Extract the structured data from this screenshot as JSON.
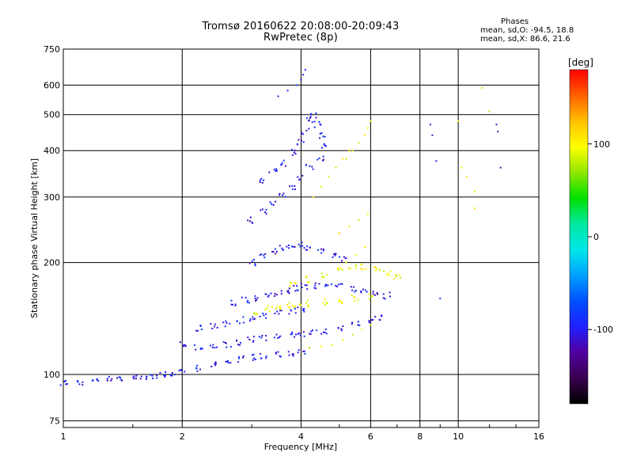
{
  "chart_data": {
    "type": "scatter",
    "title": "Tromsø 20160622 20:08:00-20:09:43",
    "subtitle": "RwPretec (8p)",
    "xlabel": "Frequency [MHz]",
    "ylabel": "Stationary phase Virtual Height [km]",
    "xscale": "log2",
    "yscale": "log",
    "xlim": [
      1,
      16
    ],
    "ylim": [
      72,
      750
    ],
    "xticks": [
      1,
      2,
      4,
      6,
      8,
      10,
      16
    ],
    "xtick_labels": [
      "1",
      "2",
      "4",
      "6",
      "8",
      "10",
      "16"
    ],
    "yticks": [
      75,
      100,
      200,
      300,
      400,
      500,
      600,
      750
    ],
    "ytick_labels": [
      "75",
      "100",
      "200",
      "300",
      "400",
      "500",
      "600",
      "750"
    ],
    "grid": true,
    "phase_stats": {
      "heading": "Phases",
      "line_o": "mean, sd,O: -94.5, 18.8",
      "line_x": "mean, sd,X:  86.6, 21.6"
    },
    "colorbar": {
      "label": "[deg]",
      "range": [
        -180,
        180
      ],
      "ticks": [
        100,
        0,
        -100
      ],
      "tick_labels": [
        "100",
        "0",
        "-100"
      ],
      "colormap": [
        "#000000",
        "#3a0050",
        "#5000a0",
        "#2020ff",
        "#0050ff",
        "#00a0ff",
        "#00e8e8",
        "#00e8a0",
        "#00e000",
        "#90e800",
        "#ffff00",
        "#ffc000",
        "#ff6000",
        "#ff0000"
      ]
    },
    "colors": {
      "o_mode": "#1a36ff",
      "x_mode": "#d8ea10",
      "grid": "#000000"
    },
    "phase_mean_o": -94.5,
    "phase_sd_o": 18.8,
    "phase_mean_x": 86.6,
    "phase_sd_x": 21.6,
    "series": [
      {
        "mode": "O",
        "phase": -100,
        "x": [
          1.0,
          1.1,
          1.2,
          1.3,
          1.4,
          1.5,
          1.6,
          1.7,
          1.8,
          1.9,
          2.0,
          2.2,
          2.4,
          2.6,
          2.8,
          3.0,
          3.2,
          3.5,
          3.8,
          4.0
        ],
        "y": [
          95,
          95,
          96,
          97,
          97,
          98,
          99,
          99,
          100,
          100,
          101,
          104,
          106,
          108,
          110,
          111,
          112,
          113,
          114,
          115
        ]
      },
      {
        "mode": "O",
        "phase": -100,
        "x": [
          2.0,
          2.2,
          2.4,
          2.6,
          2.8,
          3.0,
          3.2,
          3.5,
          3.8,
          4.0,
          4.3,
          4.6,
          5.0,
          5.5,
          6.0,
          6.3
        ],
        "y": [
          120,
          118,
          118,
          120,
          122,
          124,
          125,
          126,
          128,
          129,
          130,
          131,
          133,
          136,
          140,
          142
        ]
      },
      {
        "mode": "O",
        "phase": -100,
        "x": [
          2.2,
          2.4,
          2.6,
          2.8,
          3.0,
          3.2,
          3.5,
          3.8,
          4.0
        ],
        "y": [
          133,
          135,
          137,
          140,
          142,
          144,
          146,
          148,
          149
        ]
      },
      {
        "mode": "O",
        "phase": -100,
        "x": [
          2.7,
          2.9,
          3.1,
          3.3,
          3.5,
          3.7,
          3.9,
          4.1,
          4.4,
          4.7,
          5.0,
          5.4,
          5.8,
          6.2,
          6.6
        ],
        "y": [
          155,
          158,
          160,
          163,
          165,
          168,
          170,
          172,
          173,
          174,
          173,
          170,
          168,
          165,
          163
        ]
      },
      {
        "mode": "O",
        "phase": -100,
        "x": [
          3.0,
          3.2,
          3.4,
          3.6,
          3.8,
          4.0,
          4.2,
          4.5,
          4.8,
          5.1
        ],
        "y": [
          200,
          210,
          215,
          218,
          220,
          222,
          220,
          215,
          210,
          205
        ]
      },
      {
        "mode": "O",
        "phase": -100,
        "x": [
          3.0,
          3.2,
          3.4,
          3.6,
          3.8,
          4.0,
          4.2,
          4.5
        ],
        "y": [
          260,
          275,
          290,
          305,
          320,
          340,
          360,
          380
        ]
      },
      {
        "mode": "O",
        "phase": -100,
        "x": [
          3.2,
          3.4,
          3.6,
          3.8,
          4.0,
          4.1,
          4.2,
          4.3,
          4.4,
          4.5,
          4.6
        ],
        "y": [
          330,
          350,
          370,
          395,
          420,
          450,
          480,
          500,
          470,
          440,
          410
        ]
      },
      {
        "mode": "O",
        "phase": -100,
        "x": [
          3.5,
          3.7,
          3.9,
          4.0,
          4.05,
          4.1
        ],
        "y": [
          560,
          580,
          600,
          620,
          640,
          660
        ]
      },
      {
        "mode": "X",
        "phase": 95,
        "x": [
          3.1,
          3.3,
          3.5,
          3.7,
          3.9,
          4.2,
          4.6,
          5.0,
          5.5,
          6.0
        ],
        "y": [
          148,
          150,
          152,
          153,
          154,
          155,
          157,
          158,
          160,
          162
        ]
      },
      {
        "mode": "X",
        "phase": 95,
        "x": [
          4.2,
          4.5,
          4.8,
          5.1,
          5.4,
          5.7,
          6.0
        ],
        "y": [
          118,
          119,
          120,
          124,
          128,
          132,
          136
        ]
      },
      {
        "mode": "X",
        "phase": 95,
        "x": [
          3.8,
          4.2,
          4.6,
          5.0,
          5.4,
          5.8,
          6.2,
          6.6,
          7.0
        ],
        "y": [
          175,
          180,
          185,
          190,
          193,
          195,
          192,
          188,
          182
        ]
      },
      {
        "mode": "X",
        "phase": 95,
        "x": [
          4.3,
          4.5,
          4.7,
          4.9,
          5.1,
          5.3
        ],
        "y": [
          300,
          320,
          340,
          360,
          380,
          400
        ]
      },
      {
        "mode": "X",
        "phase": 95,
        "x": [
          5.2,
          5.4,
          5.6,
          5.8,
          5.9,
          6.0
        ],
        "y": [
          380,
          400,
          420,
          440,
          460,
          480
        ]
      },
      {
        "mode": "X",
        "phase": 95,
        "x": [
          5.0,
          5.3,
          5.6,
          5.9
        ],
        "y": [
          240,
          250,
          260,
          270
        ]
      },
      {
        "mode": "X",
        "phase": 95,
        "x": [
          5.2,
          5.5,
          5.8
        ],
        "y": [
          200,
          210,
          220
        ]
      },
      {
        "mode": "O",
        "phase": -100,
        "x": [
          8.5,
          8.6,
          8.8,
          9.0,
          12.5,
          12.6,
          12.8
        ],
        "y": [
          470,
          440,
          375,
          160,
          470,
          450,
          360
        ]
      },
      {
        "mode": "X",
        "phase": 95,
        "x": [
          10.0,
          10.2,
          11.0,
          11.5,
          12.0,
          10.5,
          11.0
        ],
        "y": [
          480,
          360,
          310,
          590,
          510,
          340,
          280
        ]
      }
    ]
  }
}
